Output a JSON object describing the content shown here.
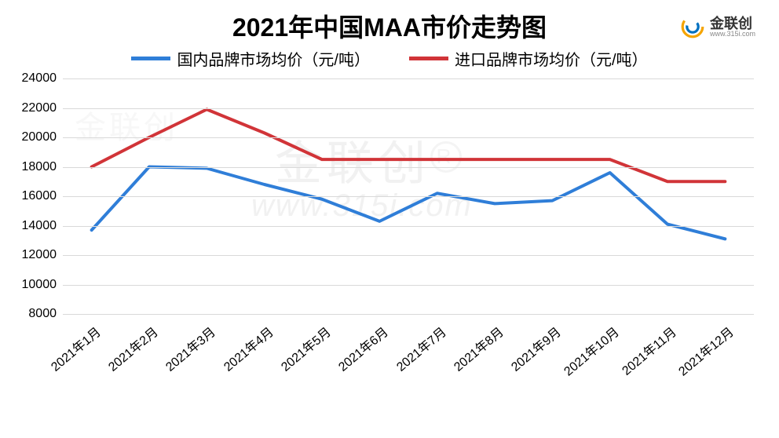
{
  "title": "2021年中国MAA市价走势图",
  "logo": {
    "brand": "金联创",
    "sub": "www.315i.com",
    "ring_outer": "#f5a400",
    "ring_inner": "#0070c0"
  },
  "watermarks": {
    "brand": "金联创",
    "r_mark": "R",
    "url": "www.315i.com",
    "small_brand": "金联创"
  },
  "legend": [
    {
      "label": "国内品牌市场均价（元/吨）",
      "color": "#2f7ed8"
    },
    {
      "label": "进口品牌市场均价（元/吨）",
      "color": "#d13438"
    }
  ],
  "chart": {
    "type": "line",
    "background_color": "#ffffff",
    "grid_color": "#d9d9d9",
    "line_width": 4,
    "title_fontsize": 32,
    "tick_fontsize": 16,
    "legend_fontsize": 20,
    "x_labels": [
      "2021年1月",
      "2021年2月",
      "2021年3月",
      "2021年4月",
      "2021年5月",
      "2021年6月",
      "2021年7月",
      "2021年8月",
      "2021年9月",
      "2021年10月",
      "2021年11月",
      "2021年12月"
    ],
    "x_label_rotation_deg": -40,
    "y_axis": {
      "min": 8000,
      "max": 24000,
      "tick_step": 2000,
      "ticks": [
        8000,
        10000,
        12000,
        14000,
        16000,
        18000,
        20000,
        22000,
        24000
      ]
    },
    "series": [
      {
        "name": "domestic",
        "color": "#2f7ed8",
        "values": [
          13700,
          18000,
          17900,
          16800,
          15800,
          14300,
          16200,
          15500,
          15700,
          17600,
          14100,
          13100
        ]
      },
      {
        "name": "import",
        "color": "#d13438",
        "values": [
          18000,
          20000,
          21900,
          20300,
          18500,
          18500,
          18500,
          18500,
          18500,
          18500,
          17000,
          17000
        ]
      }
    ]
  }
}
